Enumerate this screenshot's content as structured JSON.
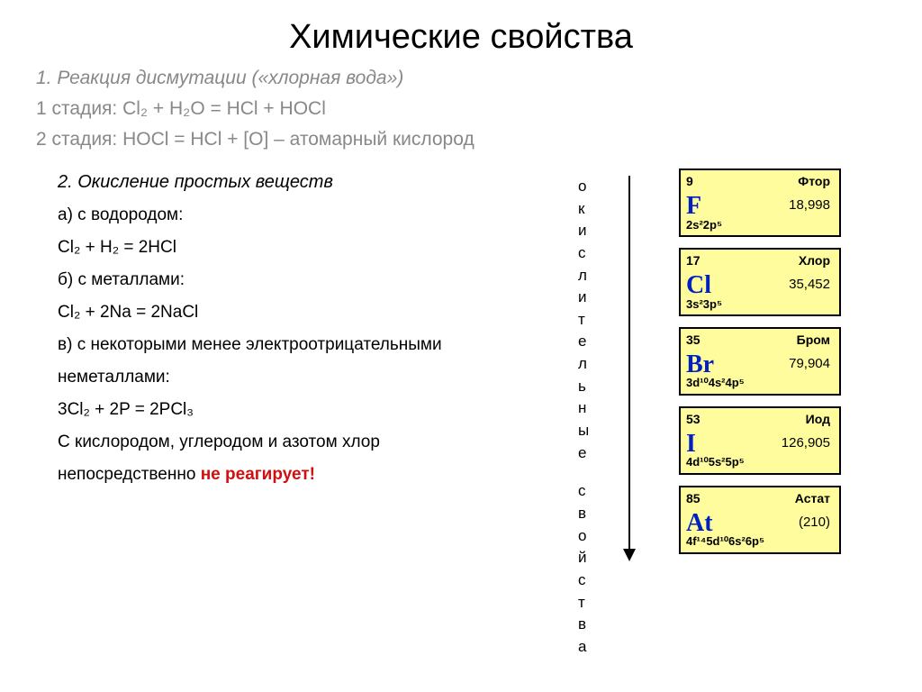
{
  "title": "Химические свойства",
  "section1": {
    "heading": "1. Реакция дисмутации («хлорная вода»)",
    "stage1": "1 стадия: Cl₂ + H₂O = HCl + HOCl",
    "stage2": "2 стадия: HOCl = HCl + [O] – атомарный кислород"
  },
  "section2": {
    "heading": "2. Окисление простых веществ",
    "a_label": "а) с водородом:",
    "a_eq": "Cl₂ + H₂ = 2HCl",
    "b_label": "б) с металлами:",
    "b_eq": "Cl₂ + 2Na = 2NaCl",
    "c_label1": "в) с некоторыми менее электроотрицательными",
    "c_label2": "неметаллами:",
    "c_eq": "3Cl₂ + 2P = 2PCl₃",
    "note1": "С кислородом, углеродом и азотом хлор",
    "note2_a": "непосредственно ",
    "note2_b": "не реагирует!"
  },
  "vertical": {
    "word1": "окислительные",
    "word2": "свойства"
  },
  "elements": [
    {
      "num": "9",
      "name": "Фтор",
      "sym": "F",
      "mass": "18,998",
      "conf": "2s²2p⁵"
    },
    {
      "num": "17",
      "name": "Хлор",
      "sym": "Cl",
      "mass": "35,452",
      "conf": "3s²3p⁵"
    },
    {
      "num": "35",
      "name": "Бром",
      "sym": "Br",
      "mass": "79,904",
      "conf": "3d¹⁰4s²4p⁵"
    },
    {
      "num": "53",
      "name": "Иод",
      "sym": "I",
      "mass": "126,905",
      "conf": "4d¹⁰5s²5p⁵"
    },
    {
      "num": "85",
      "name": "Астат",
      "sym": "At",
      "mass": "(210)",
      "conf": "4f¹⁴5d¹⁰6s²6p⁵"
    }
  ],
  "colors": {
    "box_bg": "#fffc9e",
    "box_border": "#000000",
    "symbol": "#0020c0",
    "gray_text": "#888888",
    "red_text": "#d01010"
  }
}
